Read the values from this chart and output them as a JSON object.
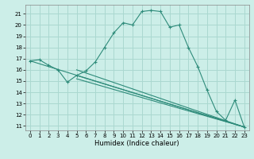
{
  "xlabel": "Humidex (Indice chaleur)",
  "bg_color": "#cceee8",
  "grid_color": "#aad8d0",
  "line_color": "#2e8b7a",
  "xlim": [
    -0.5,
    23.5
  ],
  "ylim": [
    10.6,
    21.8
  ],
  "xticks": [
    0,
    1,
    2,
    3,
    4,
    5,
    6,
    7,
    8,
    9,
    10,
    11,
    12,
    13,
    14,
    15,
    16,
    17,
    18,
    19,
    20,
    21,
    22,
    23
  ],
  "yticks": [
    11,
    12,
    13,
    14,
    15,
    16,
    17,
    18,
    19,
    20,
    21
  ],
  "main_x": [
    0,
    1,
    2,
    3,
    4,
    5,
    6,
    7,
    8,
    9,
    10,
    11,
    12,
    13,
    14,
    15,
    16,
    17,
    18,
    19,
    20,
    21,
    22,
    23
  ],
  "main_y": [
    16.8,
    16.9,
    16.4,
    16.0,
    14.9,
    15.5,
    15.9,
    16.7,
    18.0,
    19.3,
    20.2,
    20.0,
    21.2,
    21.3,
    21.2,
    19.8,
    20.0,
    18.0,
    16.3,
    14.2,
    12.3,
    11.5,
    13.3,
    10.9
  ],
  "diag_lines": [
    {
      "x": [
        0,
        23
      ],
      "y": [
        16.8,
        10.9
      ]
    },
    {
      "x": [
        5,
        23
      ],
      "y": [
        15.5,
        10.9
      ]
    },
    {
      "x": [
        5,
        23
      ],
      "y": [
        16.0,
        10.9
      ]
    },
    {
      "x": [
        5,
        23
      ],
      "y": [
        15.2,
        10.9
      ]
    }
  ],
  "tick_fontsize": 5,
  "xlabel_fontsize": 6
}
